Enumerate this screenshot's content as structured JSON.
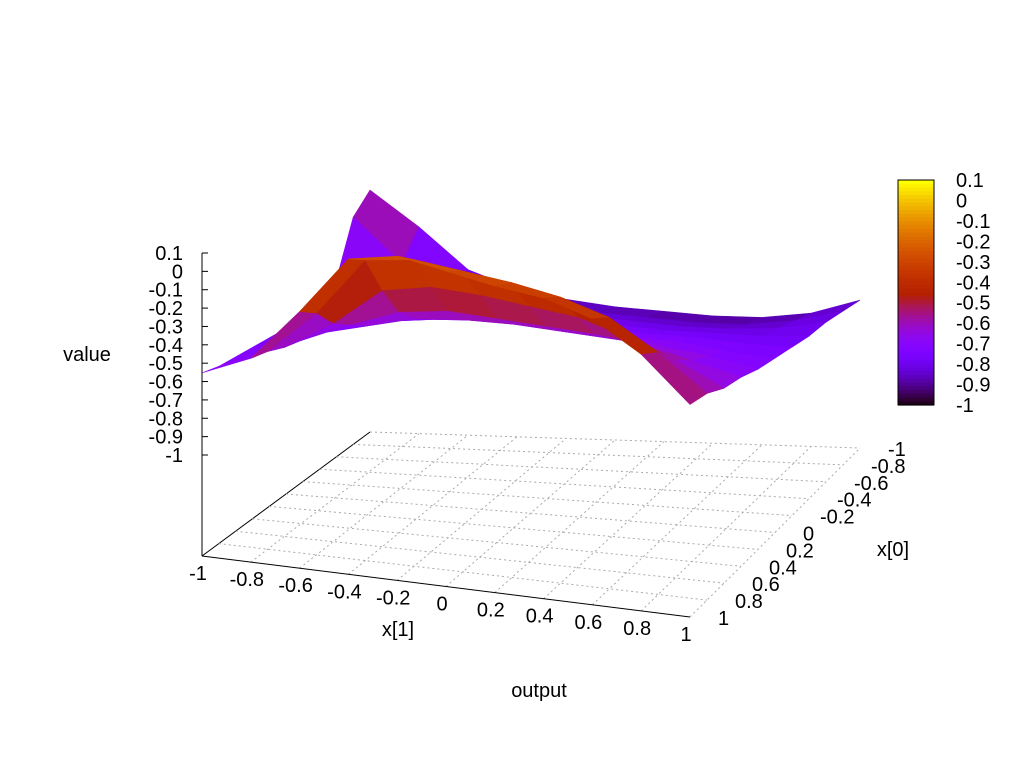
{
  "chart_data": {
    "type": "surface3d",
    "title": "output",
    "xlabel": "x[1]",
    "ylabel": "x[0]",
    "zlabel": "value",
    "x_ticks": [
      "-1",
      "-0.8",
      "-0.6",
      "-0.4",
      "-0.2",
      "0",
      "0.2",
      "0.4",
      "0.6",
      "0.8",
      "1"
    ],
    "y_ticks": [
      "-1",
      "-0.8",
      "-0.6",
      "-0.4",
      "-0.2",
      "0",
      "0.2",
      "0.4",
      "0.6",
      "0.8",
      "1"
    ],
    "z_ticks": [
      "0.1",
      "0",
      "-0.1",
      "-0.2",
      "-0.3",
      "-0.4",
      "-0.5",
      "-0.6",
      "-0.7",
      "-0.8",
      "-0.9",
      "-1"
    ],
    "colorbar_ticks": [
      "0.1",
      "0",
      "-0.1",
      "-0.2",
      "-0.3",
      "-0.4",
      "-0.5",
      "-0.6",
      "-0.7",
      "-0.8",
      "-0.9",
      "-1"
    ],
    "xlim": [
      -1,
      1
    ],
    "ylim": [
      -1,
      1
    ],
    "zlim": [
      -1,
      0.1
    ],
    "grid": true,
    "colormap": "gnuplot-pm3d",
    "grid_x": [
      -1,
      -0.8,
      -0.6,
      -0.4,
      -0.2,
      0,
      0.2,
      0.4,
      0.6,
      0.8,
      1
    ],
    "grid_y": [
      -1,
      -0.8,
      -0.6,
      -0.4,
      -0.2,
      0,
      0.2,
      0.4,
      0.6,
      0.8,
      1
    ],
    "z_values": [
      [
        -0.7,
        -0.63,
        -0.45,
        -0.25,
        -0.22,
        -0.25,
        -0.28,
        -0.3,
        -0.35,
        -0.45,
        -0.6
      ],
      [
        -0.72,
        -0.65,
        -0.5,
        -0.3,
        -0.28,
        -0.3,
        -0.32,
        -0.35,
        -0.4,
        -0.5,
        -0.62
      ],
      [
        -0.73,
        -0.68,
        -0.58,
        -0.45,
        -0.42,
        -0.43,
        -0.45,
        -0.47,
        -0.52,
        -0.58,
        -0.66
      ],
      [
        -0.74,
        -0.7,
        -0.63,
        -0.57,
        -0.55,
        -0.56,
        -0.57,
        -0.58,
        -0.6,
        -0.64,
        -0.68
      ],
      [
        -0.75,
        -0.72,
        -0.68,
        -0.64,
        -0.63,
        -0.63,
        -0.64,
        -0.65,
        -0.66,
        -0.68,
        -0.71
      ],
      [
        -0.76,
        -0.74,
        -0.71,
        -0.69,
        -0.68,
        -0.68,
        -0.69,
        -0.7,
        -0.7,
        -0.72,
        -0.73
      ],
      [
        -0.77,
        -0.75,
        -0.74,
        -0.73,
        -0.72,
        -0.72,
        -0.73,
        -0.74,
        -0.74,
        -0.75,
        -0.75
      ],
      [
        -0.78,
        -0.77,
        -0.76,
        -0.76,
        -0.76,
        -0.76,
        -0.77,
        -0.78,
        -0.78,
        -0.78,
        -0.77
      ],
      [
        -0.72,
        -0.76,
        -0.77,
        -0.79,
        -0.8,
        -0.8,
        -0.81,
        -0.82,
        -0.82,
        -0.81,
        -0.78
      ],
      [
        -0.55,
        -0.7,
        -0.77,
        -0.81,
        -0.83,
        -0.84,
        -0.85,
        -0.86,
        -0.86,
        -0.84,
        -0.8
      ],
      [
        -0.5,
        -0.62,
        -0.76,
        -0.82,
        -0.85,
        -0.87,
        -0.88,
        -0.89,
        -0.89,
        -0.87,
        -0.82
      ]
    ]
  }
}
